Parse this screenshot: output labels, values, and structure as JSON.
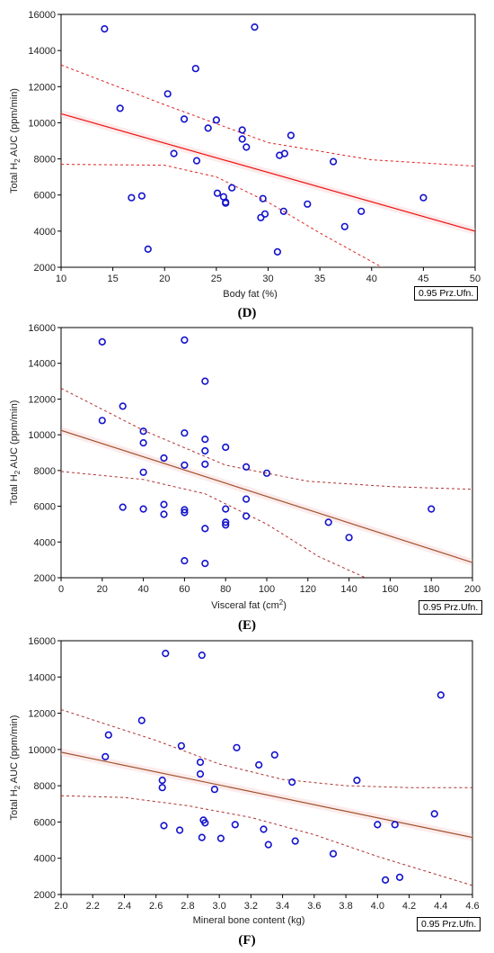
{
  "chart_data": [
    {
      "type": "scatter",
      "panel": "(D)",
      "ylabel_main": "Total H",
      "ylabel_sub": "2",
      "ylabel_rest": " AUC (ppm/min)",
      "xlabel": "Body fat (%)",
      "conf_label": "0.95 Prz.Ufn.",
      "xlim": [
        10,
        50
      ],
      "ylim": [
        2000,
        16000
      ],
      "xticks": [
        10,
        15,
        20,
        25,
        30,
        35,
        40,
        45,
        50
      ],
      "yticks": [
        2000,
        4000,
        6000,
        8000,
        10000,
        12000,
        14000,
        16000
      ],
      "fit_color": "#ee1111",
      "point_color": "#1111cc",
      "fit": [
        [
          10,
          10500
        ],
        [
          50,
          4000
        ]
      ],
      "ci_upper": [
        [
          10,
          13200
        ],
        [
          20,
          11000
        ],
        [
          30,
          8900
        ],
        [
          40,
          7950
        ],
        [
          50,
          7600
        ]
      ],
      "ci_lower": [
        [
          10,
          7700
        ],
        [
          20,
          7650
        ],
        [
          25,
          7000
        ],
        [
          30,
          5600
        ],
        [
          35,
          3900
        ],
        [
          41,
          2000
        ]
      ],
      "points": [
        [
          14.2,
          15200
        ],
        [
          15.7,
          10800
        ],
        [
          16.8,
          5850
        ],
        [
          17.8,
          5950
        ],
        [
          18.4,
          3000
        ],
        [
          20.3,
          11600
        ],
        [
          20.9,
          8300
        ],
        [
          21.9,
          10200
        ],
        [
          23.0,
          13000
        ],
        [
          23.1,
          7900
        ],
        [
          24.2,
          9700
        ],
        [
          25.0,
          10150
        ],
        [
          25.1,
          6100
        ],
        [
          25.7,
          5900
        ],
        [
          25.9,
          5600
        ],
        [
          25.9,
          5550
        ],
        [
          26.5,
          6400
        ],
        [
          27.5,
          9600
        ],
        [
          27.5,
          9100
        ],
        [
          27.9,
          8650
        ],
        [
          28.7,
          15300
        ],
        [
          29.3,
          4750
        ],
        [
          29.5,
          5800
        ],
        [
          29.7,
          4950
        ],
        [
          30.9,
          2850
        ],
        [
          31.1,
          8200
        ],
        [
          31.5,
          5100
        ],
        [
          31.6,
          8300
        ],
        [
          32.2,
          9300
        ],
        [
          33.8,
          5500
        ],
        [
          36.3,
          7850
        ],
        [
          37.4,
          4250
        ],
        [
          39.0,
          5100
        ],
        [
          45.0,
          5850
        ]
      ]
    },
    {
      "type": "scatter",
      "panel": "(E)",
      "ylabel_main": "Total H",
      "ylabel_sub": "2",
      "ylabel_rest": " AUC (ppm/min)",
      "xlabel_main": "Visceral fat (cm",
      "xlabel_sup": "2",
      "xlabel_rest": ")",
      "conf_label": "0.95 Prz.Ufn.",
      "xlim": [
        0,
        200
      ],
      "ylim": [
        2000,
        16000
      ],
      "xticks": [
        0,
        20,
        40,
        60,
        80,
        100,
        120,
        140,
        160,
        180,
        200
      ],
      "yticks": [
        2000,
        4000,
        6000,
        8000,
        10000,
        12000,
        14000,
        16000
      ],
      "fit_color": "#a0522d",
      "point_color": "#1111cc",
      "fit": [
        [
          0,
          10250
        ],
        [
          200,
          2850
        ]
      ],
      "ci_upper": [
        [
          0,
          12600
        ],
        [
          40,
          10250
        ],
        [
          80,
          8300
        ],
        [
          120,
          7400
        ],
        [
          160,
          7100
        ],
        [
          200,
          6950
        ]
      ],
      "ci_lower": [
        [
          0,
          7950
        ],
        [
          40,
          7500
        ],
        [
          70,
          6700
        ],
        [
          100,
          5000
        ],
        [
          125,
          3200
        ],
        [
          148,
          2000
        ]
      ],
      "points": [
        [
          20,
          15200
        ],
        [
          20,
          10800
        ],
        [
          30,
          11600
        ],
        [
          30,
          5950
        ],
        [
          40,
          10200
        ],
        [
          40,
          9550
        ],
        [
          40,
          7900
        ],
        [
          40,
          5850
        ],
        [
          50,
          8700
        ],
        [
          50,
          6100
        ],
        [
          50,
          5550
        ],
        [
          60,
          15300
        ],
        [
          60,
          10100
        ],
        [
          60,
          8300
        ],
        [
          60,
          5800
        ],
        [
          60,
          5650
        ],
        [
          60,
          2950
        ],
        [
          70,
          13000
        ],
        [
          70,
          9750
        ],
        [
          70,
          9100
        ],
        [
          70,
          8350
        ],
        [
          70,
          4750
        ],
        [
          70,
          2800
        ],
        [
          80,
          9300
        ],
        [
          80,
          5850
        ],
        [
          80,
          5100
        ],
        [
          80,
          4950
        ],
        [
          90,
          8200
        ],
        [
          90,
          6400
        ],
        [
          90,
          5450
        ],
        [
          100,
          7850
        ],
        [
          130,
          5100
        ],
        [
          140,
          4250
        ],
        [
          180,
          5850
        ]
      ]
    },
    {
      "type": "scatter",
      "panel": "(F)",
      "ylabel_main": "Total H",
      "ylabel_sub": "2",
      "ylabel_rest": " AUC (ppm/min)",
      "xlabel": "Mineral bone content (kg)",
      "conf_label": "0.95 Prz.Ufn.",
      "xlim": [
        2.0,
        4.6
      ],
      "ylim": [
        2000,
        16000
      ],
      "xticks": [
        "2.0",
        "2.2",
        "2.4",
        "2.6",
        "2.8",
        "3.0",
        "3.2",
        "3.4",
        "3.6",
        "3.8",
        "4.0",
        "4.2",
        "4.4",
        "4.6"
      ],
      "yticks": [
        2000,
        4000,
        6000,
        8000,
        10000,
        12000,
        14000,
        16000
      ],
      "fit_color": "#a0522d",
      "point_color": "#1111cc",
      "fit": [
        [
          2.0,
          9850
        ],
        [
          4.6,
          5150
        ]
      ],
      "ci_upper": [
        [
          2.0,
          12200
        ],
        [
          2.6,
          10500
        ],
        [
          3.0,
          9200
        ],
        [
          3.4,
          8350
        ],
        [
          3.8,
          8000
        ],
        [
          4.2,
          7900
        ],
        [
          4.6,
          7900
        ]
      ],
      "ci_lower": [
        [
          2.0,
          7450
        ],
        [
          2.4,
          7350
        ],
        [
          2.8,
          6900
        ],
        [
          3.2,
          6250
        ],
        [
          3.6,
          5300
        ],
        [
          4.0,
          4100
        ],
        [
          4.3,
          3300
        ],
        [
          4.6,
          2500
        ]
      ],
      "points": [
        [
          2.28,
          9600
        ],
        [
          2.3,
          10800
        ],
        [
          2.51,
          11600
        ],
        [
          2.64,
          8300
        ],
        [
          2.64,
          7900
        ],
        [
          2.65,
          5800
        ],
        [
          2.66,
          15300
        ],
        [
          2.75,
          5550
        ],
        [
          2.76,
          10200
        ],
        [
          2.88,
          9300
        ],
        [
          2.88,
          8650
        ],
        [
          2.89,
          15200
        ],
        [
          2.89,
          5150
        ],
        [
          2.9,
          6100
        ],
        [
          2.91,
          5950
        ],
        [
          2.97,
          7800
        ],
        [
          3.01,
          5100
        ],
        [
          3.1,
          5850
        ],
        [
          3.11,
          10100
        ],
        [
          3.25,
          9150
        ],
        [
          3.28,
          5600
        ],
        [
          3.31,
          4750
        ],
        [
          3.35,
          9700
        ],
        [
          3.46,
          8200
        ],
        [
          3.48,
          4950
        ],
        [
          3.72,
          4250
        ],
        [
          3.87,
          8300
        ],
        [
          4.0,
          5850
        ],
        [
          4.05,
          2800
        ],
        [
          4.11,
          5850
        ],
        [
          4.14,
          2950
        ],
        [
          4.36,
          6450
        ],
        [
          4.4,
          13000
        ]
      ]
    }
  ]
}
